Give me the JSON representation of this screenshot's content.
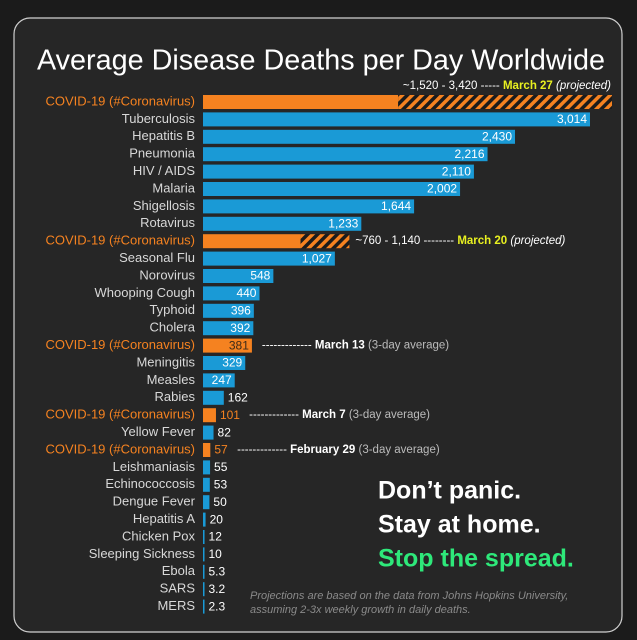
{
  "chart_data": {
    "type": "bar",
    "title": "Average Disease Deaths per Day Worldwide",
    "color": "#1a9ad6",
    "highlight_color": "#f58220",
    "date_color": "#e8f020",
    "rows": [
      {
        "label": "COVID-19 (#Coronavirus)",
        "range": [
          1520,
          3420
        ],
        "range_label": "~1,520 - 3,420",
        "date": "March 27",
        "note": "(projected)",
        "highlight": true
      },
      {
        "label": "Tuberculosis",
        "value": 3014,
        "value_label": "3,014"
      },
      {
        "label": "Hepatitis B",
        "value": 2430,
        "value_label": "2,430"
      },
      {
        "label": "Pneumonia",
        "value": 2216,
        "value_label": "2,216"
      },
      {
        "label": "HIV / AIDS",
        "value": 2110,
        "value_label": "2,110"
      },
      {
        "label": "Malaria",
        "value": 2002,
        "value_label": "2,002"
      },
      {
        "label": "Shigellosis",
        "value": 1644,
        "value_label": "1,644"
      },
      {
        "label": "Rotavirus",
        "value": 1233,
        "value_label": "1,233"
      },
      {
        "label": "COVID-19 (#Coronavirus)",
        "range": [
          760,
          1140
        ],
        "range_label": "~760 - 1,140",
        "date": "March 20",
        "note": "(projected)",
        "highlight": true
      },
      {
        "label": "Seasonal Flu",
        "value": 1027,
        "value_label": "1,027"
      },
      {
        "label": "Norovirus",
        "value": 548
      },
      {
        "label": "Whooping Cough",
        "value": 440
      },
      {
        "label": "Typhoid",
        "value": 396
      },
      {
        "label": "Cholera",
        "value": 392
      },
      {
        "label": "COVID-19 (#Coronavirus)",
        "value": 381,
        "date": "March 13",
        "note": "(3-day average)",
        "highlight": true
      },
      {
        "label": "Meningitis",
        "value": 329
      },
      {
        "label": "Measles",
        "value": 247
      },
      {
        "label": "Rabies",
        "value": 162
      },
      {
        "label": "COVID-19 (#Coronavirus)",
        "value": 101,
        "date": "March 7",
        "note": "(3-day average)",
        "highlight": true
      },
      {
        "label": "Yellow Fever",
        "value": 82
      },
      {
        "label": "COVID-19 (#Coronavirus)",
        "value": 57,
        "date": "February 29",
        "note": "(3-day average)",
        "highlight": true
      },
      {
        "label": "Leishmaniasis",
        "value": 55
      },
      {
        "label": "Echinococcosis",
        "value": 53
      },
      {
        "label": "Dengue Fever",
        "value": 50
      },
      {
        "label": "Hepatitis A",
        "value": 20
      },
      {
        "label": "Chicken Pox",
        "value": 12
      },
      {
        "label": "Sleeping Sickness",
        "value": 10
      },
      {
        "label": "Ebola",
        "value": 5.3
      },
      {
        "label": "SARS",
        "value": 3.2
      },
      {
        "label": "MERS",
        "value": 2.3
      }
    ],
    "slogans": [
      "Don’t panic.",
      "Stay at home.",
      "Stop the spread."
    ],
    "slogan_accent_color": "#2ee87a",
    "footnote": [
      "Projections are based on the data from Johns Hopkins University,",
      "assuming 2-3x weekly growth in daily deaths."
    ]
  }
}
